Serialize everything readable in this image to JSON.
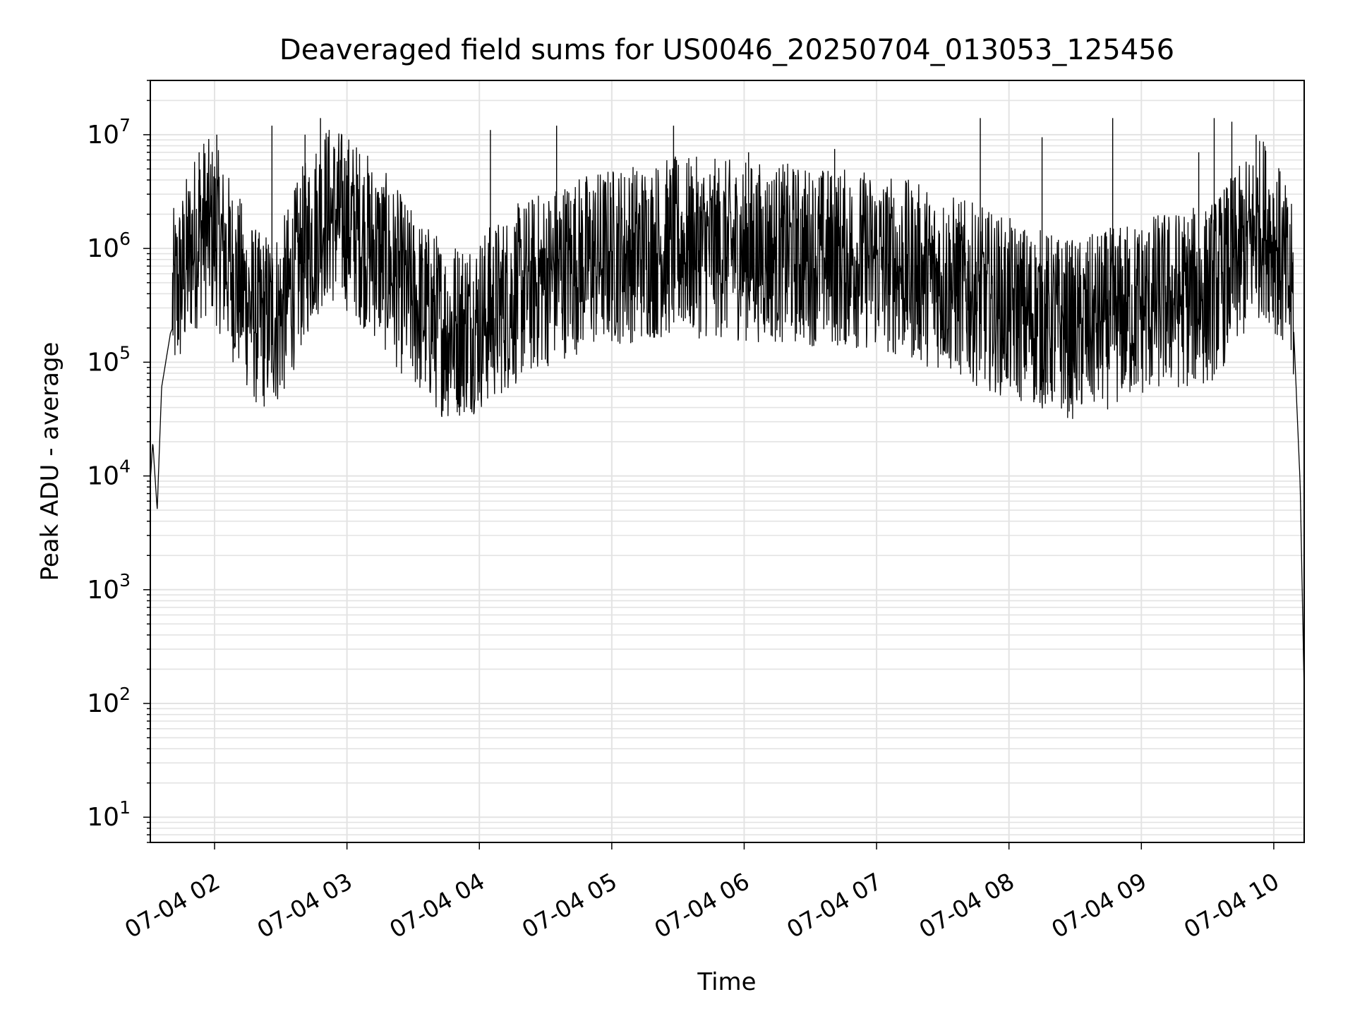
{
  "chart_data": {
    "type": "line",
    "title": "Deaveraged field sums for US0046_20250704_013053_125456",
    "xlabel": "Time",
    "ylabel": "Peak ADU - average",
    "yscale": "log",
    "ylim": [
      6,
      30000000
    ],
    "xlim": [
      "2025-07-04 01:30:53",
      "2025-07-04 10:13:47"
    ],
    "grid": true,
    "x_tick_labels": [
      "07-04 02",
      "07-04 03",
      "07-04 04",
      "07-04 05",
      "07-04 06",
      "07-04 07",
      "07-04 08",
      "07-04 09",
      "07-04 10"
    ],
    "x_tick_values": [
      "2025-07-04 02:00",
      "2025-07-04 03:00",
      "2025-07-04 04:00",
      "2025-07-04 05:00",
      "2025-07-04 06:00",
      "2025-07-04 07:00",
      "2025-07-04 08:00",
      "2025-07-04 09:00",
      "2025-07-04 10:00"
    ],
    "y_tick_exponents": [
      1,
      2,
      3,
      4,
      5,
      6,
      7
    ],
    "series": [
      {
        "color": "#000000",
        "points": [
          [
            "2025-07-04 01:30:53",
            9000
          ],
          [
            "2025-07-04 01:32",
            20000
          ],
          [
            "2025-07-04 01:34",
            5000
          ],
          [
            "2025-07-04 01:36",
            60000
          ],
          [
            "2025-07-04 01:40",
            180000
          ],
          [
            "2025-07-04 01:45",
            300000
          ],
          [
            "2025-07-04 01:50",
            600000
          ],
          [
            "2025-07-04 01:55",
            900000
          ],
          [
            "2025-07-04 02:00",
            800000
          ],
          [
            "2025-07-04 02:10",
            300000
          ],
          [
            "2025-07-04 02:20",
            130000
          ],
          [
            "2025-07-04 02:30",
            150000
          ],
          [
            "2025-07-04 02:40",
            500000
          ],
          [
            "2025-07-04 02:50",
            1200000
          ],
          [
            "2025-07-04 03:00",
            1000000
          ],
          [
            "2025-07-04 03:15",
            500000
          ],
          [
            "2025-07-04 03:30",
            200000
          ],
          [
            "2025-07-04 03:45",
            110000
          ],
          [
            "2025-07-04 04:00",
            130000
          ],
          [
            "2025-07-04 04:20",
            250000
          ],
          [
            "2025-07-04 04:40",
            400000
          ],
          [
            "2025-07-04 05:00",
            500000
          ],
          [
            "2025-07-04 05:30",
            600000
          ],
          [
            "2025-07-04 06:00",
            550000
          ],
          [
            "2025-07-04 06:30",
            500000
          ],
          [
            "2025-07-04 07:00",
            450000
          ],
          [
            "2025-07-04 07:30",
            300000
          ],
          [
            "2025-07-04 08:00",
            170000
          ],
          [
            "2025-07-04 08:30",
            110000
          ],
          [
            "2025-07-04 08:50",
            150000
          ],
          [
            "2025-07-04 09:10",
            200000
          ],
          [
            "2025-07-04 09:30",
            220000
          ],
          [
            "2025-07-04 09:45",
            500000
          ],
          [
            "2025-07-04 09:55",
            950000
          ],
          [
            "2025-07-04 10:00",
            700000
          ],
          [
            "2025-07-04 10:05",
            350000
          ],
          [
            "2025-07-04 10:09",
            200000
          ],
          [
            "2025-07-04 10:12",
            8000
          ],
          [
            "2025-07-04 10:13:47",
            120
          ]
        ],
        "spikes": [
          [
            "2025-07-04 01:53",
            7000000
          ],
          [
            "2025-07-04 02:01",
            10000000
          ],
          [
            "2025-07-04 02:26",
            12000000
          ],
          [
            "2025-07-04 02:41",
            10000000
          ],
          [
            "2025-07-04 02:48",
            14000000
          ],
          [
            "2025-07-04 04:05",
            11000000
          ],
          [
            "2025-07-04 04:35",
            12000000
          ],
          [
            "2025-07-04 05:28",
            12000000
          ],
          [
            "2025-07-04 06:02",
            7000000
          ],
          [
            "2025-07-04 06:41",
            7500000
          ],
          [
            "2025-07-04 07:47",
            14000000
          ],
          [
            "2025-07-04 08:15",
            9500000
          ],
          [
            "2025-07-04 08:47",
            14000000
          ],
          [
            "2025-07-04 09:26",
            7000000
          ],
          [
            "2025-07-04 09:33",
            14000000
          ],
          [
            "2025-07-04 09:41",
            13000000
          ],
          [
            "2025-07-04 09:52",
            10000000
          ]
        ]
      }
    ]
  }
}
